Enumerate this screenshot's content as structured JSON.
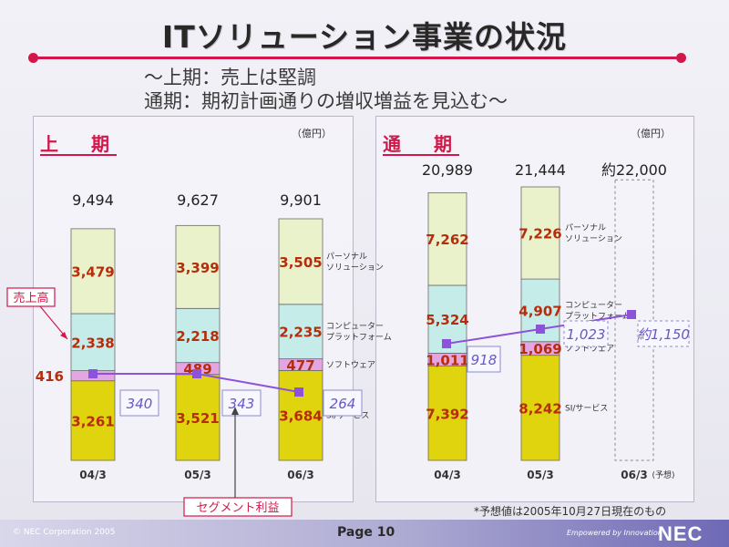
{
  "title": "ITソリューション事業の状況",
  "subtitle_line1": "～上期：売上は堅調",
  "subtitle_line2": "通期：期初計画通りの増収増益を見込む～",
  "unit": "（億円）",
  "note": "*予想値は2005年10月27日現在のもの",
  "footer": {
    "copyright": "© NEC Corporation 2005",
    "page": "Page 10",
    "tagline": "Empowered by Innovation",
    "logo": "NEC"
  },
  "colors": {
    "si_service": "#dfd40e",
    "software": "#e3a6e3",
    "platform": "#c6ecea",
    "personal": "#eaf2cc",
    "segment_line": "#8c52d9",
    "value_text": "#b62d0b",
    "total_text": "#222222",
    "callout": "#d2184a"
  },
  "chart_data": [
    {
      "type": "bar",
      "stacked": true,
      "title": "上　期",
      "categories": [
        "04/3",
        "05/3",
        "06/3"
      ],
      "totals": [
        "9,494",
        "9,627",
        "9,901"
      ],
      "series": [
        {
          "name": "SI/サービス",
          "values": [
            3261,
            3521,
            3684
          ],
          "labels": [
            "3,261",
            "3,521",
            "3,684"
          ]
        },
        {
          "name": "ソフトウェア",
          "values": [
            416,
            489,
            477
          ],
          "labels": [
            "416",
            "489",
            "477"
          ]
        },
        {
          "name": "コンピューター\nプラットフォーム",
          "values": [
            2338,
            2218,
            2235
          ],
          "labels": [
            "2,338",
            "2,218",
            "2,235"
          ]
        },
        {
          "name": "パーソナル\nソリューション",
          "values": [
            3479,
            3399,
            3505
          ],
          "labels": [
            "3,479",
            "3,399",
            "3,505"
          ]
        }
      ],
      "segment_profit": {
        "values": [
          340,
          343,
          264
        ],
        "labels": [
          "340",
          "343",
          "264"
        ]
      },
      "callouts": {
        "sales": "売上高",
        "segment_profit": "セグメント利益"
      }
    },
    {
      "type": "bar",
      "stacked": true,
      "title": "通　期",
      "categories": [
        "04/3",
        "05/3",
        "06/3"
      ],
      "category_notes": [
        "",
        "",
        "(予想)"
      ],
      "totals": [
        "20,989",
        "21,444",
        "約22,000"
      ],
      "forecast": [
        false,
        false,
        true
      ],
      "series": [
        {
          "name": "SI/サービス",
          "values": [
            7392,
            8242,
            null
          ],
          "labels": [
            "7,392",
            "8,242",
            ""
          ]
        },
        {
          "name": "ソフトウェア",
          "values": [
            1011,
            1069,
            null
          ],
          "labels": [
            "1,011",
            "1,069",
            ""
          ]
        },
        {
          "name": "コンピューター\nプラットフォーム",
          "values": [
            5324,
            4907,
            null
          ],
          "labels": [
            "5,324",
            "4,907",
            ""
          ]
        },
        {
          "name": "パーソナル\nソリューション",
          "values": [
            7262,
            7226,
            null
          ],
          "labels": [
            "7,262",
            "7,226",
            ""
          ]
        }
      ],
      "segment_profit": {
        "values": [
          918,
          1023,
          1150
        ],
        "labels": [
          "918",
          "1,023",
          "約1,150"
        ]
      }
    }
  ]
}
